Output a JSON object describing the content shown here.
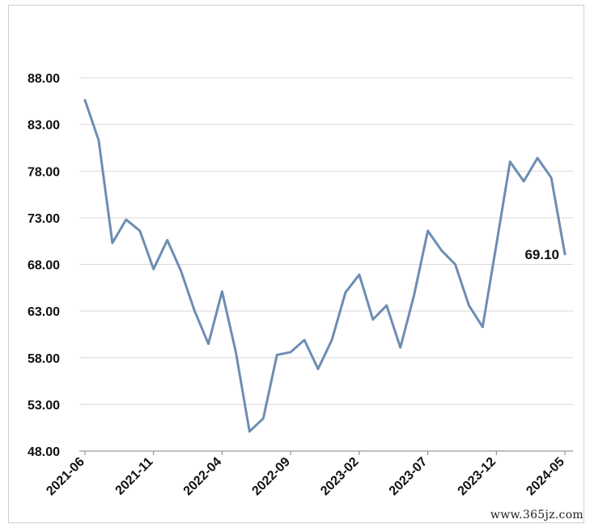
{
  "chart_data": {
    "type": "line",
    "x_tick_labels": [
      "2021-06",
      "2021-11",
      "2022-04",
      "2022-09",
      "2023-02",
      "2023-07",
      "2023-12",
      "2024-05"
    ],
    "y_tick_labels": [
      "48.00",
      "53.00",
      "58.00",
      "63.00",
      "68.00",
      "73.00",
      "78.00",
      "83.00",
      "88.00"
    ],
    "ylim": [
      48,
      88
    ],
    "grid": "horizontal",
    "line_color": "#6d8db3",
    "series": [
      {
        "x": [
          "2021-06",
          "2021-07",
          "2021-08",
          "2021-09",
          "2021-10",
          "2021-11",
          "2021-12",
          "2022-01",
          "2022-02",
          "2022-03",
          "2022-04",
          "2022-05",
          "2022-06",
          "2022-07",
          "2022-08",
          "2022-09",
          "2022-10",
          "2022-11",
          "2022-12",
          "2023-01",
          "2023-02",
          "2023-03",
          "2023-04",
          "2023-05",
          "2023-06",
          "2023-07",
          "2023-08",
          "2023-09",
          "2023-10",
          "2023-11",
          "2023-12",
          "2024-01",
          "2024-02",
          "2024-03",
          "2024-04",
          "2024-05"
        ],
        "values": [
          85.6,
          81.3,
          70.3,
          72.8,
          71.6,
          67.5,
          70.6,
          67.3,
          63.0,
          59.5,
          65.1,
          58.6,
          50.1,
          51.5,
          58.3,
          58.6,
          59.9,
          56.8,
          59.9,
          65.0,
          66.9,
          62.1,
          63.6,
          59.1,
          64.7,
          71.6,
          69.5,
          68.0,
          63.6,
          61.3,
          70.1,
          79.0,
          76.9,
          79.4,
          77.3,
          69.1
        ]
      }
    ],
    "annotations": [
      {
        "text": "69.10",
        "x": "2024-05",
        "y": 69.1
      }
    ]
  },
  "watermark": "www.365jz.com"
}
